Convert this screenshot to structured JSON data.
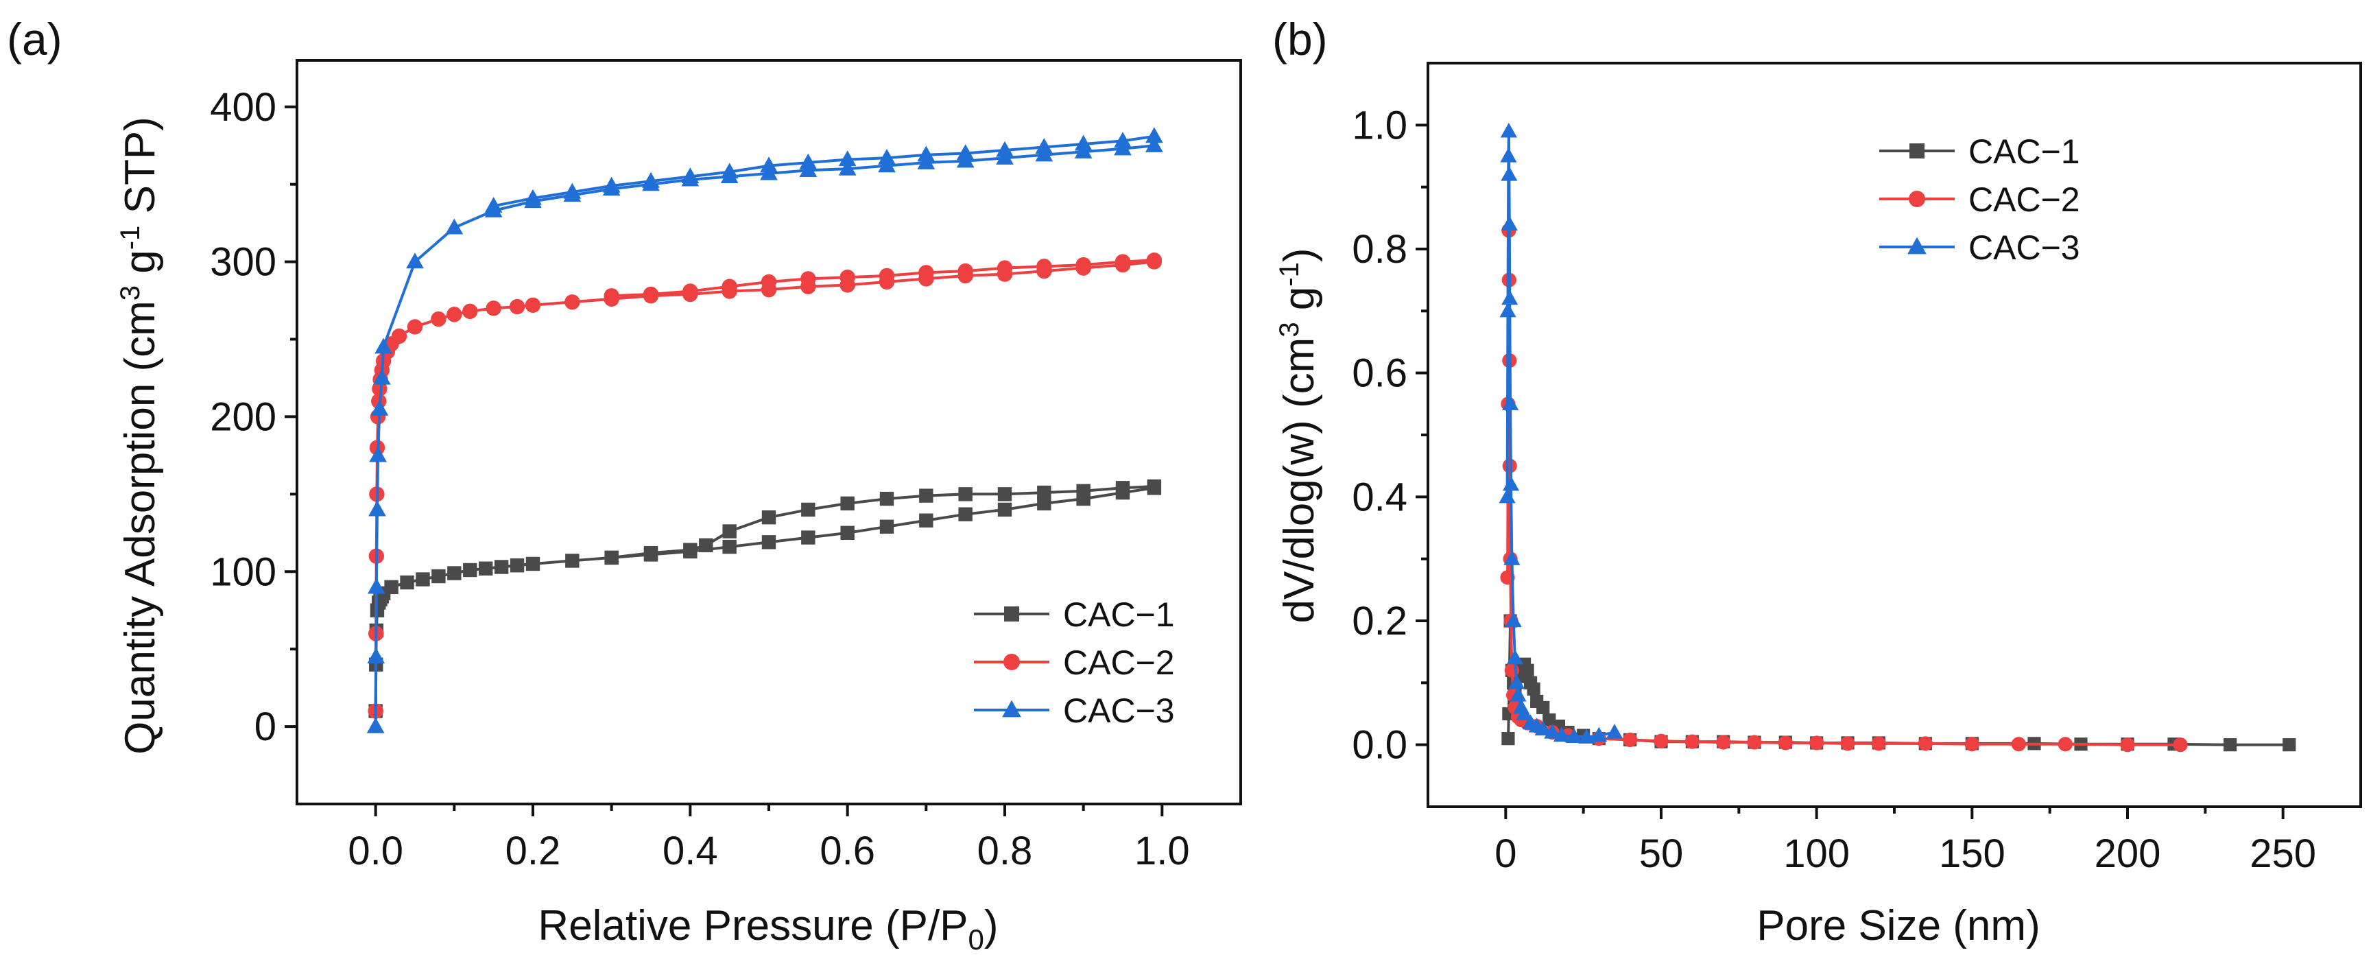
{
  "chart_data": [
    {
      "panel_label": "(a)",
      "type": "line",
      "xlabel": "Relative Pressure (P/P",
      "xlabel_sub": "0",
      "xlabel_end": ")",
      "ylabel": "Quantity Adsorption (cm",
      "ylabel_sup1": "3",
      "ylabel_mid": " g",
      "ylabel_sup2": "-1",
      "ylabel_end": " STP)",
      "xlim": [
        -0.1,
        1.1
      ],
      "ylim": [
        -50,
        430
      ],
      "xticks": [
        0.0,
        0.2,
        0.4,
        0.6,
        0.8,
        1.0
      ],
      "xtick_labels": [
        "0.0",
        "0.2",
        "0.4",
        "0.6",
        "0.8",
        "1.0"
      ],
      "yticks": [
        0,
        100,
        200,
        300,
        400
      ],
      "ytick_labels": [
        "0",
        "100",
        "200",
        "300",
        "400"
      ],
      "legend_position": "bottom-right",
      "series": [
        {
          "name": "CAC−1",
          "color": "#4a4a4a",
          "marker": "square",
          "adsorption": {
            "x": [
              0.0,
              0.0005,
              0.001,
              0.002,
              0.004,
              0.006,
              0.008,
              0.01,
              0.02,
              0.04,
              0.06,
              0.08,
              0.1,
              0.12,
              0.14,
              0.16,
              0.18,
              0.2,
              0.25,
              0.3,
              0.35,
              0.4,
              0.45,
              0.5,
              0.55,
              0.6,
              0.65,
              0.7,
              0.75,
              0.8,
              0.85,
              0.9,
              0.95,
              0.99
            ],
            "y": [
              10,
              40,
              62,
              75,
              80,
              82,
              84,
              86,
              90,
              93,
              95,
              97,
              99,
              101,
              102,
              103,
              104,
              105,
              107,
              109,
              111,
              113,
              116,
              119,
              122,
              125,
              129,
              133,
              137,
              140,
              144,
              147,
              151,
              154
            ]
          },
          "desorption": {
            "x": [
              0.99,
              0.95,
              0.9,
              0.85,
              0.8,
              0.75,
              0.7,
              0.65,
              0.6,
              0.55,
              0.5,
              0.45,
              0.42,
              0.4,
              0.35,
              0.3
            ],
            "y": [
              155,
              154,
              152,
              151,
              150,
              150,
              149,
              147,
              144,
              140,
              135,
              126,
              117,
              114,
              112,
              109
            ]
          }
        },
        {
          "name": "CAC−2",
          "color": "#ee4040",
          "marker": "circle",
          "adsorption": {
            "x": [
              0.0,
              0.0005,
              0.001,
              0.0015,
              0.002,
              0.003,
              0.004,
              0.005,
              0.006,
              0.008,
              0.01,
              0.015,
              0.02,
              0.03,
              0.05,
              0.08,
              0.1,
              0.12,
              0.15,
              0.18,
              0.2,
              0.25,
              0.3,
              0.35,
              0.4,
              0.45,
              0.5,
              0.55,
              0.6,
              0.65,
              0.7,
              0.75,
              0.8,
              0.85,
              0.9,
              0.95,
              0.99
            ],
            "y": [
              10,
              60,
              110,
              150,
              180,
              200,
              210,
              218,
              224,
              230,
              236,
              242,
              247,
              252,
              258,
              263,
              266,
              268,
              270,
              271,
              272,
              274,
              276,
              278,
              279,
              281,
              282,
              284,
              285,
              287,
              289,
              291,
              292,
              294,
              296,
              298,
              300
            ]
          },
          "desorption": {
            "x": [
              0.99,
              0.95,
              0.9,
              0.85,
              0.8,
              0.75,
              0.7,
              0.65,
              0.6,
              0.55,
              0.5,
              0.45,
              0.4,
              0.35,
              0.3
            ],
            "y": [
              301,
              300,
              298,
              297,
              296,
              294,
              293,
              291,
              290,
              289,
              287,
              284,
              281,
              279,
              278
            ]
          }
        },
        {
          "name": "CAC−3",
          "color": "#1f6fd6",
          "marker": "triangle",
          "adsorption": {
            "x": [
              0.0,
              0.0005,
              0.001,
              0.002,
              0.003,
              0.005,
              0.008,
              0.01,
              0.05,
              0.1,
              0.15,
              0.2,
              0.25,
              0.3,
              0.35,
              0.4,
              0.45,
              0.5,
              0.55,
              0.6,
              0.65,
              0.7,
              0.75,
              0.8,
              0.85,
              0.9,
              0.95,
              0.99
            ],
            "y": [
              0,
              45,
              90,
              140,
              175,
              205,
              225,
              245,
              300,
              322,
              333,
              339,
              343,
              347,
              350,
              353,
              355,
              357,
              359,
              360,
              362,
              364,
              365,
              367,
              369,
              371,
              373,
              375
            ]
          },
          "desorption": {
            "x": [
              0.99,
              0.95,
              0.9,
              0.85,
              0.8,
              0.75,
              0.7,
              0.65,
              0.6,
              0.55,
              0.5,
              0.45,
              0.4,
              0.35,
              0.3,
              0.25,
              0.2,
              0.15
            ],
            "y": [
              381,
              378,
              376,
              374,
              372,
              370,
              369,
              367,
              366,
              364,
              362,
              358,
              355,
              352,
              349,
              345,
              341,
              336
            ]
          }
        }
      ]
    },
    {
      "panel_label": "(b)",
      "type": "line",
      "xlabel": "Pore Size (nm)",
      "ylabel": "dV/dlog(w) (cm",
      "ylabel_sup1": "3",
      "ylabel_mid": " g",
      "ylabel_sup2": "-1",
      "ylabel_end": ")",
      "xlim": [
        -25,
        275
      ],
      "ylim": [
        -0.1,
        1.1
      ],
      "xticks": [
        0,
        50,
        100,
        150,
        200,
        250
      ],
      "xtick_labels": [
        "0",
        "50",
        "100",
        "150",
        "200",
        "250"
      ],
      "yticks": [
        0.0,
        0.2,
        0.4,
        0.6,
        0.8,
        1.0
      ],
      "ytick_labels": [
        "0.0",
        "0.2",
        "0.4",
        "0.6",
        "0.8",
        "1.0"
      ],
      "legend_position": "top-center",
      "series": [
        {
          "name": "CAC−1",
          "color": "#4a4a4a",
          "marker": "square",
          "x": [
            0.8,
            1.0,
            1.5,
            2.0,
            2.5,
            3.0,
            3.5,
            4.0,
            5.0,
            6.0,
            7.0,
            8.0,
            9.0,
            10.0,
            12.0,
            14.0,
            17.0,
            20.0,
            25.0,
            30.0,
            40.0,
            50.0,
            60.0,
            70.0,
            80.0,
            90.0,
            100.0,
            110.0,
            120.0,
            135.0,
            150.0,
            170.0,
            185.0,
            200.0,
            215.0,
            233.0,
            252.0
          ],
          "y": [
            0.01,
            0.05,
            0.2,
            0.12,
            0.1,
            0.08,
            0.07,
            0.11,
            0.12,
            0.13,
            0.12,
            0.1,
            0.09,
            0.07,
            0.06,
            0.04,
            0.03,
            0.02,
            0.015,
            0.01,
            0.008,
            0.005,
            0.005,
            0.005,
            0.004,
            0.004,
            0.003,
            0.003,
            0.003,
            0.002,
            0.002,
            0.002,
            0.001,
            0.001,
            0.001,
            0.0,
            0.0
          ]
        },
        {
          "name": "CAC−2",
          "color": "#ee4040",
          "marker": "circle",
          "x": [
            0.6,
            0.8,
            1.0,
            1.1,
            1.2,
            1.3,
            1.5,
            1.7,
            2.0,
            2.5,
            3.0,
            4.0,
            5.0,
            7.0,
            10.0,
            15.0,
            20.0,
            30.0,
            40.0,
            50.0,
            60.0,
            70.0,
            80.0,
            90.0,
            100.0,
            110.0,
            120.0,
            135.0,
            150.0,
            165.0,
            180.0,
            200.0,
            217.0
          ],
          "y": [
            0.27,
            0.55,
            0.83,
            0.75,
            0.62,
            0.45,
            0.3,
            0.2,
            0.12,
            0.08,
            0.06,
            0.045,
            0.04,
            0.035,
            0.03,
            0.02,
            0.015,
            0.01,
            0.008,
            0.006,
            0.005,
            0.004,
            0.004,
            0.003,
            0.003,
            0.002,
            0.002,
            0.002,
            0.001,
            0.001,
            0.001,
            0.0,
            0.0
          ]
        },
        {
          "name": "CAC−3",
          "color": "#1f6fd6",
          "marker": "triangle",
          "x": [
            0.5,
            0.7,
            0.9,
            1.0,
            1.1,
            1.2,
            1.3,
            1.5,
            1.7,
            2.0,
            2.5,
            3.0,
            3.5,
            4.0,
            5.0,
            6.0,
            8.0,
            10.0,
            12.0,
            15.0,
            18.0,
            22.0,
            26.0,
            30.0,
            35.0
          ],
          "y": [
            0.4,
            0.7,
            0.95,
            0.99,
            0.92,
            0.84,
            0.72,
            0.55,
            0.42,
            0.3,
            0.2,
            0.14,
            0.1,
            0.08,
            0.06,
            0.05,
            0.035,
            0.03,
            0.025,
            0.02,
            0.015,
            0.013,
            0.012,
            0.015,
            0.02
          ]
        }
      ]
    }
  ]
}
